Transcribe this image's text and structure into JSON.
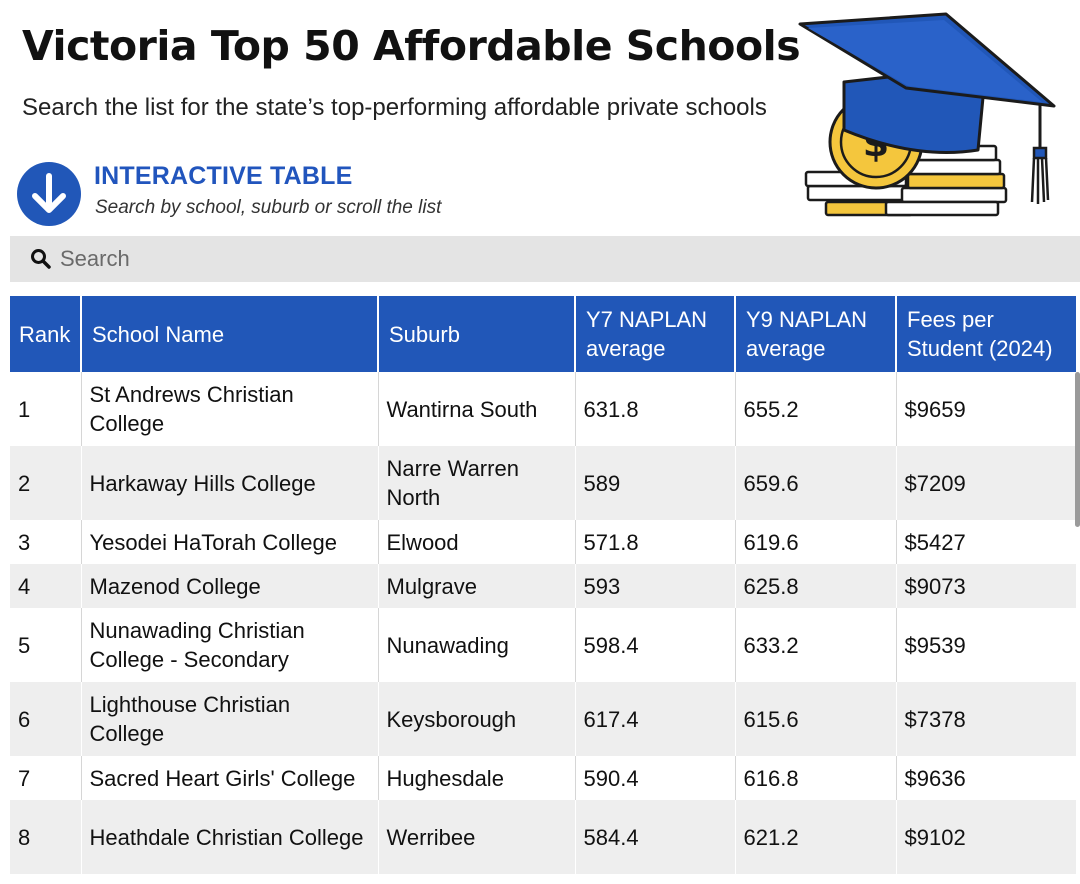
{
  "header": {
    "title": "Victoria Top 50 Affordable Schools",
    "subtitle": "Search the list for the state’s top-performing affordable private schools"
  },
  "hero": {
    "icon": "graduation-cap-coins-icon"
  },
  "interactive": {
    "icon": "arrow-down-circle-icon",
    "title": "INTERACTIVE TABLE",
    "subtitle": "Search by school, suburb or scroll the list"
  },
  "search": {
    "icon": "search-icon",
    "placeholder": "Search",
    "value": ""
  },
  "colors": {
    "accent": "#2157b8",
    "accent_text": "#2155bd",
    "row_alt": "#eeeeee",
    "search_bg": "#e4e4e4",
    "coin": "#f4c63d"
  },
  "table": {
    "headers": {
      "rank": "Rank",
      "school": "School Name",
      "suburb": "Suburb",
      "y7": "Y7 NAPLAN average",
      "y9": "Y9 NAPLAN average",
      "fees": "Fees per Student (2024)"
    },
    "rows": [
      {
        "rank": "1",
        "school": "St Andrews Christian College",
        "suburb": "Wantirna South",
        "y7": "631.8",
        "y9": "655.2",
        "fees": "$9659"
      },
      {
        "rank": "2",
        "school": "Harkaway Hills College",
        "suburb": "Narre Warren North",
        "y7": "589",
        "y9": "659.6",
        "fees": "$7209"
      },
      {
        "rank": "3",
        "school": "Yesodei HaTorah College",
        "suburb": "Elwood",
        "y7": "571.8",
        "y9": "619.6",
        "fees": "$5427"
      },
      {
        "rank": "4",
        "school": "Mazenod College",
        "suburb": "Mulgrave",
        "y7": "593",
        "y9": "625.8",
        "fees": "$9073"
      },
      {
        "rank": "5",
        "school": "Nunawading Christian College - Secondary",
        "suburb": "Nunawading",
        "y7": "598.4",
        "y9": "633.2",
        "fees": "$9539"
      },
      {
        "rank": "6",
        "school": "Lighthouse Christian College",
        "suburb": "Keysborough",
        "y7": "617.4",
        "y9": "615.6",
        "fees": "$7378"
      },
      {
        "rank": "7",
        "school": "Sacred Heart Girls' College",
        "suburb": "Hughesdale",
        "y7": "590.4",
        "y9": "616.8",
        "fees": "$9636"
      },
      {
        "rank": "8",
        "school": "Heathdale Christian College",
        "suburb": "Werribee",
        "y7": "584.4",
        "y9": "621.2",
        "fees": "$9102"
      }
    ]
  }
}
